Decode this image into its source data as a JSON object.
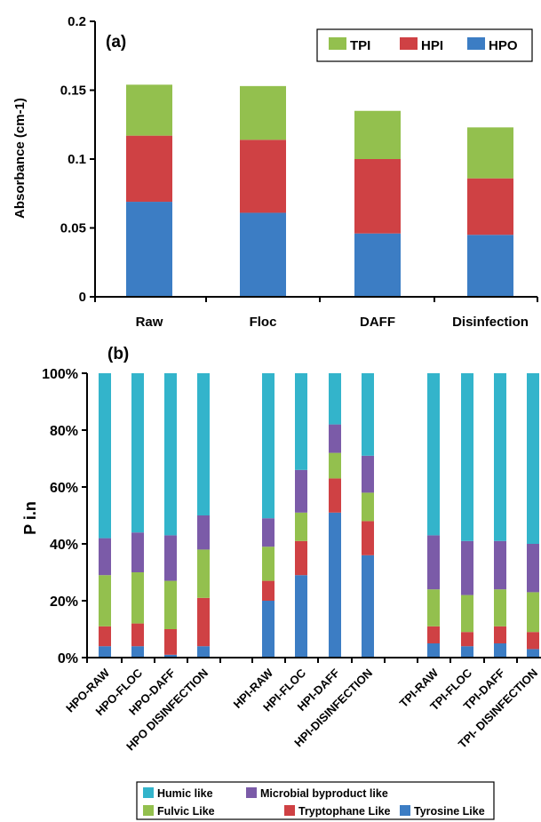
{
  "colors": {
    "blue": "#3c7dc4",
    "red": "#cf4144",
    "green": "#93c04e",
    "cyan": "#33b4cb",
    "purple": "#7b5ba8"
  },
  "chart_data": [
    {
      "type": "bar",
      "stacked": true,
      "panel_label": "(a)",
      "title": "",
      "xlabel": "",
      "ylabel": "Absorbance (cm-1)",
      "ylim": [
        0,
        0.2
      ],
      "yticks": [
        "0",
        "0.05",
        "0.1",
        "0.15",
        "0.2"
      ],
      "categories": [
        "Raw",
        "Floc",
        "DAFF",
        "Disinfection"
      ],
      "series": [
        {
          "name": "HPO",
          "color": "blue",
          "values": [
            0.069,
            0.061,
            0.046,
            0.045
          ]
        },
        {
          "name": "HPI",
          "color": "red",
          "values": [
            0.048,
            0.053,
            0.054,
            0.041
          ]
        },
        {
          "name": "TPI",
          "color": "green",
          "values": [
            0.037,
            0.039,
            0.035,
            0.037
          ]
        }
      ],
      "legend": {
        "placement": "top-right",
        "order": [
          "TPI",
          "HPI",
          "HPO"
        ]
      }
    },
    {
      "type": "bar",
      "stacked": true,
      "percent": true,
      "panel_label": "(b)",
      "title": "",
      "xlabel": "",
      "ylabel": "P i.n",
      "ylim": [
        0,
        100
      ],
      "yticks": [
        "0%",
        "20%",
        "40%",
        "60%",
        "80%",
        "100%"
      ],
      "categories": [
        "HPO-RAW",
        "HPO-FLOC",
        "HPO-DAFF",
        "HPO DISINFECTION",
        "HPI-RAW",
        "HPI-FLOC",
        "HPI-DAFF",
        "HPI-DISINFECTION",
        "TPI-RAW",
        "TPI-FLOC",
        "TPI-DAFF",
        "TPI- DISINFECTION"
      ],
      "series": [
        {
          "name": "Tyrosine Like",
          "color": "blue",
          "values": [
            4,
            4,
            1,
            4,
            20,
            29,
            51,
            36,
            5,
            4,
            5,
            3
          ]
        },
        {
          "name": "Tryptophane Like",
          "color": "red",
          "values": [
            7,
            8,
            9,
            17,
            7,
            12,
            12,
            12,
            6,
            5,
            6,
            6
          ]
        },
        {
          "name": "Fulvic Like",
          "color": "green",
          "values": [
            18,
            18,
            17,
            17,
            12,
            10,
            9,
            10,
            13,
            13,
            13,
            14
          ]
        },
        {
          "name": "Microbial byproduct like",
          "color": "purple",
          "values": [
            13,
            14,
            16,
            12,
            10,
            15,
            10,
            13,
            19,
            19,
            17,
            17
          ]
        },
        {
          "name": "Humic like",
          "color": "cyan",
          "values": [
            58,
            56,
            57,
            50,
            51,
            34,
            18,
            29,
            57,
            59,
            59,
            60
          ]
        }
      ],
      "legend": {
        "placement": "bottom-center",
        "rows": [
          [
            "Humic like",
            "Microbial byproduct like"
          ],
          [
            "Fulvic Like",
            "Tryptophane Like",
            "Tyrosine Like"
          ]
        ]
      }
    }
  ]
}
